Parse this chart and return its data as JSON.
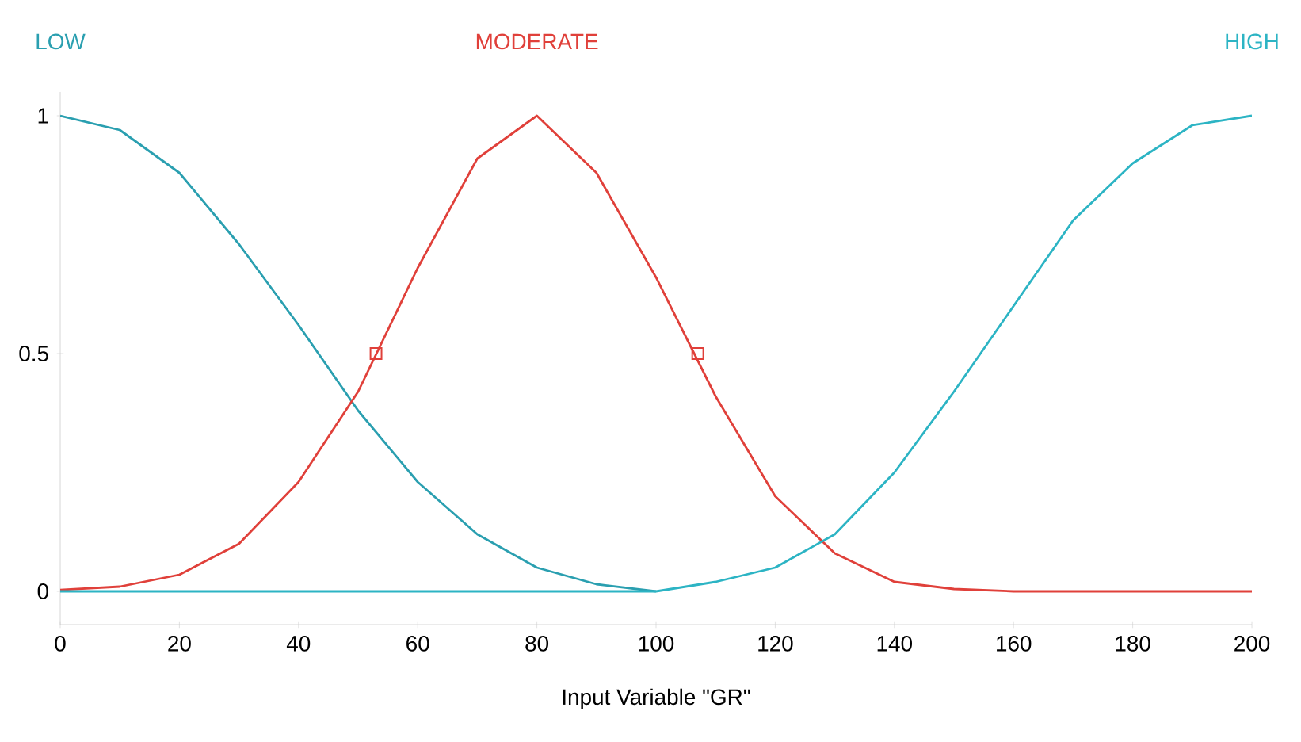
{
  "chart_data": {
    "type": "line",
    "xlabel": "Input Variable \"GR\"",
    "x": [
      0,
      10,
      20,
      30,
      40,
      50,
      60,
      70,
      80,
      90,
      100,
      110,
      120,
      130,
      140,
      150,
      160,
      170,
      180,
      190,
      200
    ],
    "series": [
      {
        "name": "LOW",
        "color": "#2a9fb0",
        "values": [
          1,
          0.97,
          0.88,
          0.73,
          0.56,
          0.38,
          0.23,
          0.12,
          0.05,
          0.015,
          0,
          null,
          null,
          null,
          null,
          null,
          null,
          null,
          null,
          null,
          null
        ]
      },
      {
        "name": "MODERATE",
        "color": "#e0403a",
        "values": [
          0.003,
          0.01,
          0.035,
          0.1,
          0.23,
          0.42,
          0.68,
          0.91,
          1,
          0.88,
          0.66,
          0.41,
          0.2,
          0.08,
          0.02,
          0.005,
          0,
          0,
          0,
          0,
          0
        ]
      },
      {
        "name": "HIGH",
        "color": "#2cb4c4",
        "values": [
          0,
          0,
          0,
          0,
          0,
          0,
          0,
          0,
          0,
          0,
          0,
          0.02,
          0.05,
          0.12,
          0.25,
          0.42,
          0.6,
          0.78,
          0.9,
          0.98,
          1
        ]
      },
      {
        "type": "scatter",
        "marker": "square",
        "color": "#e0403a",
        "x": [
          53,
          107
        ],
        "values": [
          0.5,
          0.5
        ]
      }
    ],
    "xlim": [
      0,
      200
    ],
    "ylim": [
      -0.07,
      1.05
    ],
    "xticks": [
      0,
      20,
      40,
      60,
      80,
      100,
      120,
      140,
      160,
      180,
      200
    ],
    "yticks": [
      0,
      0.5,
      1
    ],
    "grid": false,
    "marker": "none",
    "line_style": "solid"
  }
}
